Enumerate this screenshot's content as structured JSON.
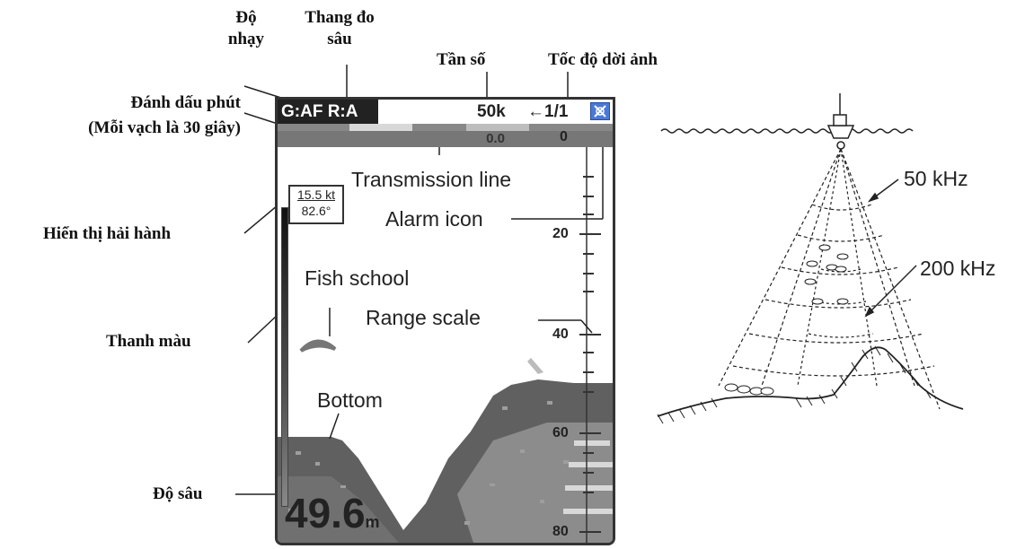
{
  "labels_vn": {
    "sensitivity_line1": "Độ",
    "sensitivity_line2": "nhạy",
    "range_line1": "Thang đo",
    "range_line2": "sâu",
    "frequency": "Tần số",
    "advance_speed": "Tốc độ dời ảnh",
    "minute_marker_line1": "Đánh dấu phút",
    "minute_marker_line2": "(Mỗi vạch là 30 giây)",
    "nav_display": "Hiển thị hải hành",
    "color_bar": "Thanh màu",
    "depth": "Độ sâu"
  },
  "screen": {
    "gain_range": "G:AF R:A",
    "frequency": "50k",
    "speed": "←1/1",
    "depth_offset": "0.0",
    "nav_speed": "15.5 kt",
    "nav_heading": "82.6°",
    "scale": [
      "0",
      "20",
      "40",
      "60",
      "80"
    ],
    "depth_value": "49.6",
    "depth_unit": "m",
    "labels": {
      "transmission_line": "Transmission line",
      "alarm_icon": "Alarm icon",
      "fish_school": "Fish school",
      "range_scale": "Range scale",
      "bottom": "Bottom"
    }
  },
  "beam": {
    "label_50": "50 kHz",
    "label_200": "200 kHz"
  },
  "colors": {
    "alarm": "#4a79d6",
    "echo_dark": "#555555",
    "echo_light": "#9a9a9a"
  }
}
